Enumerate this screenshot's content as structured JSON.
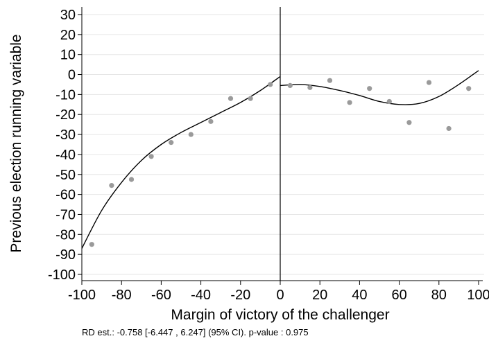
{
  "chart_data": {
    "type": "scatter",
    "xlabel": "Margin of victory of the challenger",
    "ylabel": "Previous election running variable",
    "xlim": [
      -100,
      100
    ],
    "ylim": [
      -100,
      30
    ],
    "xticks": [
      -100,
      -80,
      -60,
      -40,
      -20,
      0,
      20,
      40,
      60,
      80,
      100
    ],
    "yticks": [
      30,
      20,
      10,
      0,
      -10,
      -20,
      -30,
      -40,
      -50,
      -60,
      -70,
      -80,
      -90,
      -100
    ],
    "grid": "horizontal",
    "cutoff": 0,
    "points": [
      {
        "x": -95,
        "y": -85
      },
      {
        "x": -85,
        "y": -55.5
      },
      {
        "x": -75,
        "y": -52.5
      },
      {
        "x": -65,
        "y": -41
      },
      {
        "x": -55,
        "y": -34
      },
      {
        "x": -45,
        "y": -30
      },
      {
        "x": -35,
        "y": -23.5
      },
      {
        "x": -25,
        "y": -12
      },
      {
        "x": -15,
        "y": -12
      },
      {
        "x": -5,
        "y": -5
      },
      {
        "x": 5,
        "y": -5.5
      },
      {
        "x": 15,
        "y": -6.5
      },
      {
        "x": 25,
        "y": -3
      },
      {
        "x": 35,
        "y": -14
      },
      {
        "x": 45,
        "y": -7
      },
      {
        "x": 55,
        "y": -13.5
      },
      {
        "x": 65,
        "y": -24
      },
      {
        "x": 75,
        "y": -4
      },
      {
        "x": 85,
        "y": -27
      },
      {
        "x": 95,
        "y": -7
      }
    ],
    "fit_left": [
      {
        "x": -100,
        "y": -87
      },
      {
        "x": -90,
        "y": -68
      },
      {
        "x": -80,
        "y": -54
      },
      {
        "x": -70,
        "y": -43
      },
      {
        "x": -60,
        "y": -35
      },
      {
        "x": -50,
        "y": -29
      },
      {
        "x": -40,
        "y": -24
      },
      {
        "x": -30,
        "y": -19
      },
      {
        "x": -20,
        "y": -14
      },
      {
        "x": -10,
        "y": -8
      },
      {
        "x": 0,
        "y": -1
      }
    ],
    "fit_right": [
      {
        "x": 0,
        "y": -5.5
      },
      {
        "x": 10,
        "y": -5
      },
      {
        "x": 20,
        "y": -6
      },
      {
        "x": 30,
        "y": -8
      },
      {
        "x": 40,
        "y": -10.5
      },
      {
        "x": 50,
        "y": -13.5
      },
      {
        "x": 60,
        "y": -15
      },
      {
        "x": 70,
        "y": -14.5
      },
      {
        "x": 80,
        "y": -11
      },
      {
        "x": 90,
        "y": -5
      },
      {
        "x": 100,
        "y": 2
      }
    ],
    "point_color": "#9a9a9a",
    "line_color": "#000000",
    "grid_color": "#e6e6e6",
    "note": "RD est.: -0.758 [-6.447 , 6.247] (95% CI). p-value : 0.975"
  }
}
